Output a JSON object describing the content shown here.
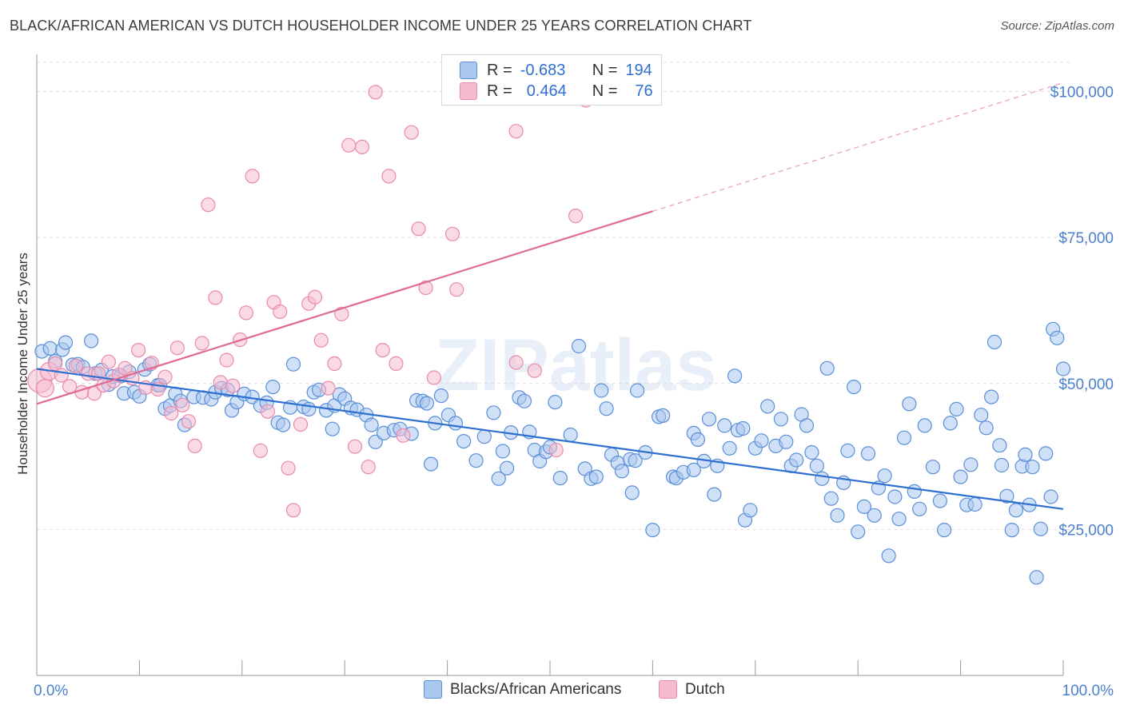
{
  "title": "BLACK/AFRICAN AMERICAN VS DUTCH HOUSEHOLDER INCOME UNDER 25 YEARS CORRELATION CHART",
  "source": "Source: ZipAtlas.com",
  "watermark": "ZIPatlas",
  "colors": {
    "blue_fill": "#a9c7ef",
    "blue_stroke": "#5b8fd8",
    "blue_line": "#2e6fd0",
    "pink_fill": "#f5bcd0",
    "pink_stroke": "#e98aaa",
    "pink_line": "#e06a93",
    "accent_text": "#2f6fcf"
  },
  "legend": {
    "rows": [
      {
        "r_label": "R =",
        "r_value": "-0.683",
        "n_label": "N =",
        "n_value": "194"
      },
      {
        "r_label": "R =",
        "r_value": "0.464",
        "n_label": "N =",
        "n_value": "76"
      }
    ]
  },
  "chart_data": {
    "type": "scatter",
    "title": "BLACK/AFRICAN AMERICAN VS DUTCH HOUSEHOLDER INCOME UNDER 25 YEARS CORRELATION CHART",
    "xlabel": "",
    "ylabel": "Householder Income Under 25 years",
    "xlim": [
      0,
      100
    ],
    "ylim": [
      0,
      105000
    ],
    "x_tick_labels": [
      "0.0%",
      "100.0%"
    ],
    "y_ticks": [
      25000,
      50000,
      75000,
      100000
    ],
    "y_tick_labels": [
      "$25,000",
      "$50,000",
      "$75,000",
      "$100,000"
    ],
    "grid": true,
    "legend_position": "top-center",
    "series": [
      {
        "name": "Blacks/African Americans",
        "trend": {
          "x": [
            0,
            100
          ],
          "y": [
            52500,
            28500
          ]
        },
        "points": [
          [
            0.5,
            55500
          ],
          [
            1.3,
            56000
          ],
          [
            1.8,
            53800
          ],
          [
            2.5,
            55800
          ],
          [
            2.8,
            57000
          ],
          [
            3.5,
            53200
          ],
          [
            4,
            53300
          ],
          [
            4.5,
            52800
          ],
          [
            5.3,
            57300
          ],
          [
            5.7,
            51700
          ],
          [
            6.3,
            52300
          ],
          [
            7,
            49800
          ],
          [
            7.4,
            51200
          ],
          [
            8.2,
            51300
          ],
          [
            8.5,
            48300
          ],
          [
            9,
            52000
          ],
          [
            9.5,
            48500
          ],
          [
            10,
            47800
          ],
          [
            10.5,
            52400
          ],
          [
            11,
            53300
          ],
          [
            11.8,
            49700
          ],
          [
            12,
            49700
          ],
          [
            12.5,
            45700
          ],
          [
            13,
            46200
          ],
          [
            13.5,
            48200
          ],
          [
            14,
            47000
          ],
          [
            14.4,
            42900
          ],
          [
            15.3,
            47700
          ],
          [
            16.2,
            47600
          ],
          [
            17,
            47300
          ],
          [
            17.4,
            48500
          ],
          [
            18,
            49200
          ],
          [
            18.6,
            48900
          ],
          [
            19,
            45400
          ],
          [
            19.5,
            46800
          ],
          [
            20.2,
            48200
          ],
          [
            21,
            47700
          ],
          [
            21.8,
            46200
          ],
          [
            22.4,
            46700
          ],
          [
            23,
            49400
          ],
          [
            23.5,
            43300
          ],
          [
            24,
            42900
          ],
          [
            24.7,
            45900
          ],
          [
            25,
            53300
          ],
          [
            26,
            46000
          ],
          [
            26.5,
            45600
          ],
          [
            27,
            48500
          ],
          [
            27.5,
            48900
          ],
          [
            28.2,
            45400
          ],
          [
            28.8,
            42200
          ],
          [
            29,
            46200
          ],
          [
            29.5,
            48100
          ],
          [
            30,
            47400
          ],
          [
            30.6,
            45800
          ],
          [
            31.2,
            45500
          ],
          [
            32.1,
            44600
          ],
          [
            32.6,
            42900
          ],
          [
            33,
            40000
          ],
          [
            33.8,
            41500
          ],
          [
            34.8,
            42000
          ],
          [
            35.4,
            42200
          ],
          [
            36.5,
            41400
          ],
          [
            37,
            47100
          ],
          [
            37.6,
            47000
          ],
          [
            38,
            46600
          ],
          [
            38.4,
            36200
          ],
          [
            38.8,
            43200
          ],
          [
            39.4,
            47900
          ],
          [
            40.1,
            44600
          ],
          [
            40.8,
            43200
          ],
          [
            41.6,
            40100
          ],
          [
            42.8,
            36800
          ],
          [
            43.6,
            40900
          ],
          [
            44.5,
            45000
          ],
          [
            45,
            33700
          ],
          [
            45.4,
            38400
          ],
          [
            45.8,
            35500
          ],
          [
            46.2,
            41600
          ],
          [
            47,
            47600
          ],
          [
            47.5,
            47000
          ],
          [
            48,
            41700
          ],
          [
            48.5,
            38600
          ],
          [
            49,
            36700
          ],
          [
            49.6,
            38300
          ],
          [
            50,
            39100
          ],
          [
            50.5,
            46800
          ],
          [
            51,
            33800
          ],
          [
            52,
            41200
          ],
          [
            52.8,
            56400
          ],
          [
            53.4,
            35400
          ],
          [
            54,
            33700
          ],
          [
            54.5,
            34000
          ],
          [
            55,
            48800
          ],
          [
            55.5,
            45700
          ],
          [
            56,
            37800
          ],
          [
            56.6,
            36400
          ],
          [
            57,
            35000
          ],
          [
            57.8,
            37000
          ],
          [
            58,
            31300
          ],
          [
            58.3,
            36800
          ],
          [
            58.5,
            48800
          ],
          [
            59.3,
            38200
          ],
          [
            60,
            24900
          ],
          [
            60.6,
            44300
          ],
          [
            61,
            44500
          ],
          [
            62,
            34000
          ],
          [
            62.3,
            33800
          ],
          [
            63,
            34800
          ],
          [
            64,
            41500
          ],
          [
            64,
            35200
          ],
          [
            64.4,
            40400
          ],
          [
            65,
            36700
          ],
          [
            65.5,
            43900
          ],
          [
            66,
            31000
          ],
          [
            66.3,
            35900
          ],
          [
            67,
            42800
          ],
          [
            67.5,
            38900
          ],
          [
            68,
            51300
          ],
          [
            68.3,
            42000
          ],
          [
            68.8,
            42300
          ],
          [
            69,
            26600
          ],
          [
            69.5,
            28300
          ],
          [
            70,
            38900
          ],
          [
            70.6,
            40200
          ],
          [
            71.2,
            46100
          ],
          [
            72,
            39300
          ],
          [
            72.5,
            43900
          ],
          [
            73,
            40000
          ],
          [
            73.5,
            35900
          ],
          [
            74,
            36900
          ],
          [
            74.5,
            44700
          ],
          [
            75,
            42800
          ],
          [
            75.5,
            38200
          ],
          [
            76,
            35900
          ],
          [
            76.5,
            33700
          ],
          [
            77,
            52600
          ],
          [
            77.4,
            30300
          ],
          [
            78,
            27400
          ],
          [
            78.6,
            33000
          ],
          [
            79,
            38500
          ],
          [
            79.6,
            49400
          ],
          [
            80,
            24600
          ],
          [
            80.6,
            28900
          ],
          [
            81,
            38000
          ],
          [
            81.6,
            27400
          ],
          [
            82,
            32100
          ],
          [
            82.6,
            34200
          ],
          [
            83,
            20500
          ],
          [
            83.6,
            30600
          ],
          [
            84,
            26800
          ],
          [
            84.5,
            40700
          ],
          [
            85,
            46500
          ],
          [
            85.5,
            31500
          ],
          [
            86,
            28500
          ],
          [
            86.5,
            42800
          ],
          [
            87.3,
            35700
          ],
          [
            88,
            29900
          ],
          [
            88.4,
            24900
          ],
          [
            89,
            43200
          ],
          [
            89.6,
            45600
          ],
          [
            90,
            34000
          ],
          [
            90.6,
            29200
          ],
          [
            91,
            36100
          ],
          [
            91.4,
            29300
          ],
          [
            92,
            44600
          ],
          [
            92.5,
            42400
          ],
          [
            93,
            47700
          ],
          [
            93.3,
            57100
          ],
          [
            93.8,
            39400
          ],
          [
            94,
            36000
          ],
          [
            94.5,
            30700
          ],
          [
            95,
            24900
          ],
          [
            95.4,
            28300
          ],
          [
            96,
            35800
          ],
          [
            96.3,
            37800
          ],
          [
            96.7,
            29200
          ],
          [
            97,
            35700
          ],
          [
            97.4,
            16800
          ],
          [
            97.8,
            25100
          ],
          [
            98.3,
            38000
          ],
          [
            98.8,
            30600
          ],
          [
            99,
            59300
          ],
          [
            99.4,
            57800
          ],
          [
            100,
            52500
          ]
        ]
      },
      {
        "name": "Dutch",
        "trend": {
          "x": [
            0,
            60
          ],
          "y": [
            46500,
            79500
          ]
        },
        "trend_extension": {
          "x": [
            60,
            100
          ],
          "y": [
            79500,
            101500
          ]
        },
        "points": [
          [
            0.3,
            50500
          ],
          [
            0.8,
            49200
          ],
          [
            1.2,
            52100
          ],
          [
            1.8,
            53400
          ],
          [
            2.4,
            51400
          ],
          [
            3.2,
            49500
          ],
          [
            3.8,
            53000
          ],
          [
            4.4,
            48500
          ],
          [
            5,
            51700
          ],
          [
            5.6,
            48300
          ],
          [
            6,
            51700
          ],
          [
            6.5,
            49700
          ],
          [
            7,
            53700
          ],
          [
            7.5,
            50400
          ],
          [
            8,
            51500
          ],
          [
            8.6,
            52600
          ],
          [
            9.3,
            50900
          ],
          [
            9.9,
            55700
          ],
          [
            10.6,
            49300
          ],
          [
            11.2,
            53500
          ],
          [
            11.8,
            49000
          ],
          [
            12.5,
            51100
          ],
          [
            13.1,
            44900
          ],
          [
            13.7,
            56100
          ],
          [
            14.2,
            46300
          ],
          [
            14.8,
            43500
          ],
          [
            15.4,
            39300
          ],
          [
            16.1,
            56900
          ],
          [
            16.7,
            80600
          ],
          [
            17.4,
            64700
          ],
          [
            17.9,
            50200
          ],
          [
            18.5,
            54000
          ],
          [
            19.1,
            49600
          ],
          [
            19.8,
            57500
          ],
          [
            20.4,
            62100
          ],
          [
            21,
            85500
          ],
          [
            21.8,
            38500
          ],
          [
            22.5,
            45200
          ],
          [
            23.1,
            63900
          ],
          [
            23.7,
            62300
          ],
          [
            24.5,
            35500
          ],
          [
            25,
            28300
          ],
          [
            25.7,
            43000
          ],
          [
            26.5,
            63700
          ],
          [
            27.1,
            64800
          ],
          [
            27.7,
            57400
          ],
          [
            28.4,
            49200
          ],
          [
            29,
            53400
          ],
          [
            29.7,
            61900
          ],
          [
            30.4,
            90800
          ],
          [
            31,
            39200
          ],
          [
            31.7,
            90500
          ],
          [
            32.3,
            35700
          ],
          [
            33,
            99900
          ],
          [
            33.7,
            55700
          ],
          [
            34.3,
            85500
          ],
          [
            35,
            53400
          ],
          [
            35.7,
            41100
          ],
          [
            36.5,
            93000
          ],
          [
            37.2,
            76500
          ],
          [
            37.9,
            66400
          ],
          [
            38.7,
            51000
          ],
          [
            40.5,
            75600
          ],
          [
            40.9,
            66100
          ],
          [
            46.7,
            53600
          ],
          [
            46.7,
            93200
          ],
          [
            48.5,
            52200
          ],
          [
            50.6,
            38600
          ],
          [
            52.5,
            78700
          ],
          [
            53.5,
            98500
          ]
        ]
      }
    ]
  },
  "bottom_legend": [
    {
      "label": "Blacks/African Americans"
    },
    {
      "label": "Dutch"
    }
  ]
}
